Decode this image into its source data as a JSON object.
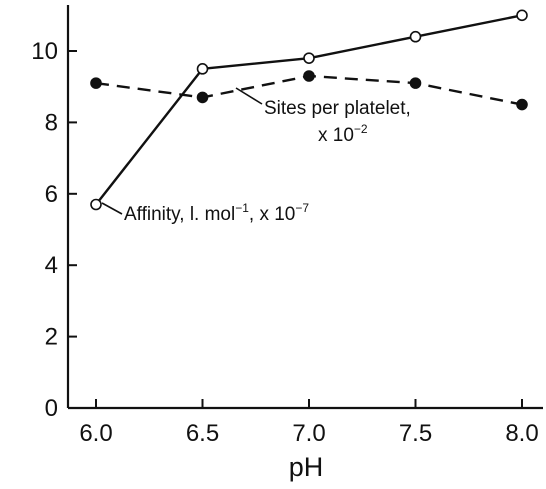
{
  "chart_data": {
    "type": "line",
    "title": "",
    "xlabel": "pH",
    "ylabel": "",
    "xlim": [
      5.75,
      8.25
    ],
    "ylim": [
      0,
      11.2
    ],
    "xticks": [
      "6.0",
      "6.5",
      "7.0",
      "7.5",
      "8.0"
    ],
    "yticks": [
      "0",
      "2",
      "4",
      "6",
      "8",
      "10"
    ],
    "grid": false,
    "series": [
      {
        "style": "solid line, open circle markers",
        "x": [
          6.0,
          6.5,
          7.0,
          7.5,
          8.0
        ],
        "y": [
          5.7,
          9.5,
          9.8,
          10.4,
          11.0
        ]
      },
      {
        "style": "dashed line, filled circle markers",
        "x": [
          6.0,
          6.5,
          7.0,
          7.5,
          8.0
        ],
        "y": [
          9.1,
          8.7,
          9.3,
          9.1,
          8.5
        ]
      }
    ],
    "annotations": [
      {
        "series": 0,
        "text_main": "Affinity, l. mol",
        "text_sup1": "−1",
        "text_mid": ", x 10",
        "text_sup2": "−7"
      },
      {
        "series": 1,
        "line1": "Sites per platelet,",
        "line2_main": "x 10",
        "line2_sup": "−2"
      }
    ]
  }
}
